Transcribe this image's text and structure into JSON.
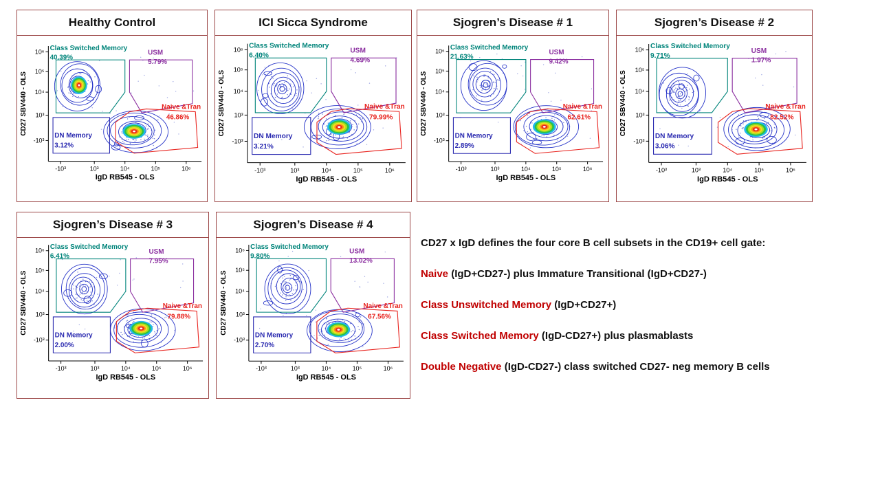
{
  "notes": {
    "heading": "CD27 x IgD defines the four core B cell subsets in the CD19+ cell gate:",
    "items": [
      {
        "lead": "Naive",
        "rest": " (IgD+CD27-) plus Immature Transitional (IgD+CD27-)"
      },
      {
        "lead": "Class Unswitched Memory",
        "rest": " (IgD+CD27+)"
      },
      {
        "lead": "Class Switched Memory",
        "rest": " (IgD-CD27+) plus plasmablasts"
      },
      {
        "lead": "Double Negative",
        "rest": " (IgD-CD27-) class switched CD27- neg memory B cells"
      }
    ]
  },
  "colors": {
    "panel_border": "#9a4444",
    "csm": "#00847a",
    "usm": "#8b2fa0",
    "naive": "#e8231e",
    "dn": "#2a2ab0",
    "contour": "#2533c8",
    "lead_text": "#c00000"
  },
  "chart_data": [
    {
      "type": "contour",
      "title": "Healthy Control",
      "xlabel": "IgD RB545 - OLS",
      "ylabel": "CD27 SBV440 - OLS",
      "x_ticks": [
        "-10³",
        "10³",
        "10⁴",
        "10⁵",
        "10⁶"
      ],
      "y_ticks": [
        "10⁶",
        "10⁵",
        "10⁴",
        "10³",
        "-10³"
      ],
      "gates": [
        {
          "id": "csm",
          "name": "Class Switched Memory",
          "percent": 40.39,
          "percent_text": "40.39%",
          "color": "#00847a"
        },
        {
          "id": "usm",
          "name": "USM",
          "percent": 5.79,
          "percent_text": "5.79%",
          "color": "#8b2fa0"
        },
        {
          "id": "naive",
          "name": "Naive &Tran",
          "percent": 46.86,
          "percent_text": "46.86%",
          "color": "#e8231e"
        },
        {
          "id": "dn",
          "name": "DN Memory",
          "percent": 3.12,
          "percent_text": "3.12%",
          "color": "#2a2ab0"
        }
      ]
    },
    {
      "type": "contour",
      "title": "ICI Sicca Syndrome",
      "xlabel": "IgD RB545 - OLS",
      "ylabel": "CD27 SBV440 - OLS",
      "x_ticks": [
        "-10³",
        "10³",
        "10⁴",
        "10⁵",
        "10⁶"
      ],
      "y_ticks": [
        "10⁶",
        "10⁵",
        "10⁴",
        "10³",
        "-10³"
      ],
      "gates": [
        {
          "id": "csm",
          "name": "Class Switched Memory",
          "percent": 6.4,
          "percent_text": "6.40%",
          "color": "#00847a"
        },
        {
          "id": "usm",
          "name": "USM",
          "percent": 4.69,
          "percent_text": "4.69%",
          "color": "#8b2fa0"
        },
        {
          "id": "naive",
          "name": "Naive &Tran",
          "percent": 79.99,
          "percent_text": "79.99%",
          "color": "#e8231e"
        },
        {
          "id": "dn",
          "name": "DN Memory",
          "percent": 3.21,
          "percent_text": "3.21%",
          "color": "#2a2ab0"
        }
      ]
    },
    {
      "type": "contour",
      "title": "Sjogren’s Disease # 1",
      "xlabel": "IgD RB545 - OLS",
      "ylabel": "CD27 SBV440 - OLS",
      "x_ticks": [
        "-10³",
        "10³",
        "10⁴",
        "10⁵",
        "10⁶"
      ],
      "y_ticks": [
        "10⁶",
        "10⁵",
        "10⁴",
        "10³",
        "-10³"
      ],
      "gates": [
        {
          "id": "csm",
          "name": "Class Switched Memory",
          "percent": 21.63,
          "percent_text": "21.63%",
          "color": "#00847a"
        },
        {
          "id": "usm",
          "name": "USM",
          "percent": 9.42,
          "percent_text": "9.42%",
          "color": "#8b2fa0"
        },
        {
          "id": "naive",
          "name": "Naive &Tran",
          "percent": 62.61,
          "percent_text": "62.61%",
          "color": "#e8231e"
        },
        {
          "id": "dn",
          "name": "DN Memory",
          "percent": 2.89,
          "percent_text": "2.89%",
          "color": "#2a2ab0"
        }
      ]
    },
    {
      "type": "contour",
      "title": "Sjogren’s Disease # 2",
      "xlabel": "IgD RB545 - OLS",
      "ylabel": "CD27 SBV440 - OLS",
      "x_ticks": [
        "-10³",
        "10³",
        "10⁴",
        "10⁵",
        "10⁶"
      ],
      "y_ticks": [
        "10⁶",
        "10⁵",
        "10⁴",
        "10³",
        "-10³"
      ],
      "gates": [
        {
          "id": "csm",
          "name": "Class Switched Memory",
          "percent": 9.71,
          "percent_text": "9.71%",
          "color": "#00847a"
        },
        {
          "id": "usm",
          "name": "USM",
          "percent": 1.97,
          "percent_text": "1.97%",
          "color": "#8b2fa0"
        },
        {
          "id": "naive",
          "name": "Naive &Tran",
          "percent": 82.52,
          "percent_text": "82.52%",
          "color": "#e8231e"
        },
        {
          "id": "dn",
          "name": "DN Memory",
          "percent": 3.06,
          "percent_text": "3.06%",
          "color": "#2a2ab0"
        }
      ]
    },
    {
      "type": "contour",
      "title": "Sjogren’s Disease # 3",
      "xlabel": "IgD RB545 - OLS",
      "ylabel": "CD27 SBV440 - OLS",
      "x_ticks": [
        "-10³",
        "10³",
        "10⁴",
        "10⁵",
        "10⁶"
      ],
      "y_ticks": [
        "10⁶",
        "10⁵",
        "10⁴",
        "10³",
        "-10³"
      ],
      "gates": [
        {
          "id": "csm",
          "name": "Class Switched Memory",
          "percent": 6.41,
          "percent_text": "6.41%",
          "color": "#00847a"
        },
        {
          "id": "usm",
          "name": "USM",
          "percent": 7.95,
          "percent_text": "7.95%",
          "color": "#8b2fa0"
        },
        {
          "id": "naive",
          "name": "Naive &Tran",
          "percent": 79.88,
          "percent_text": "79.88%",
          "color": "#e8231e"
        },
        {
          "id": "dn",
          "name": "DN Memory",
          "percent": 2.0,
          "percent_text": "2.00%",
          "color": "#2a2ab0"
        }
      ]
    },
    {
      "type": "contour",
      "title": "Sjogren’s Disease # 4",
      "xlabel": "IgD RB545 - OLS",
      "ylabel": "CD27 SBV440 - OLS",
      "x_ticks": [
        "-10³",
        "10³",
        "10⁴",
        "10⁵",
        "10⁶"
      ],
      "y_ticks": [
        "10⁶",
        "10⁵",
        "10⁴",
        "10³",
        "-10³"
      ],
      "gates": [
        {
          "id": "csm",
          "name": "Class Switched Memory",
          "percent": 9.8,
          "percent_text": "9.80%",
          "color": "#00847a"
        },
        {
          "id": "usm",
          "name": "USM",
          "percent": 13.02,
          "percent_text": "13.02%",
          "color": "#8b2fa0"
        },
        {
          "id": "naive",
          "name": "Naive &Tran",
          "percent": 67.56,
          "percent_text": "67.56%",
          "color": "#e8231e"
        },
        {
          "id": "dn",
          "name": "DN Memory",
          "percent": 2.7,
          "percent_text": "2.70%",
          "color": "#2a2ab0"
        }
      ]
    }
  ]
}
